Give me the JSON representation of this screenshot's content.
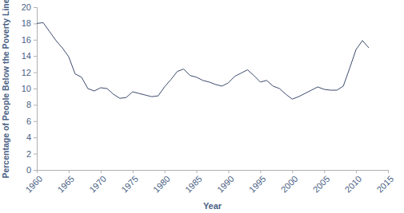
{
  "chart_data": {
    "type": "line",
    "x_label": "Year",
    "y_label": "Percentage of People Below the Poverty Line",
    "x": [
      1960,
      1961,
      1962,
      1963,
      1964,
      1965,
      1966,
      1967,
      1968,
      1969,
      1970,
      1971,
      1972,
      1973,
      1974,
      1975,
      1976,
      1977,
      1978,
      1979,
      1980,
      1981,
      1982,
      1983,
      1984,
      1985,
      1986,
      1987,
      1988,
      1989,
      1990,
      1991,
      1992,
      1993,
      1994,
      1995,
      1996,
      1997,
      1998,
      1999,
      2000,
      2001,
      2002,
      2003,
      2004,
      2005,
      2006,
      2007,
      2008,
      2009,
      2010,
      2011,
      2012
    ],
    "values": [
      18.0,
      18.1,
      17.0,
      15.9,
      15.0,
      13.9,
      11.8,
      11.4,
      10.0,
      9.7,
      10.1,
      10.0,
      9.3,
      8.8,
      8.9,
      9.6,
      9.4,
      9.2,
      9.0,
      9.1,
      10.2,
      11.1,
      12.1,
      12.4,
      11.6,
      11.4,
      11.0,
      10.8,
      10.5,
      10.3,
      10.7,
      11.5,
      11.9,
      12.3,
      11.6,
      10.8,
      11.0,
      10.3,
      10.0,
      9.3,
      8.7,
      9.0,
      9.4,
      9.8,
      10.2,
      9.9,
      9.8,
      9.8,
      10.3,
      12.5,
      14.8,
      15.9,
      15.0
    ],
    "color": "#3d4b6e",
    "xlim": [
      1960,
      2015
    ],
    "xticks": [
      1960,
      1965,
      1970,
      1975,
      1980,
      1985,
      1990,
      1995,
      2000,
      2005,
      2010,
      2015
    ],
    "ylim": [
      0,
      20
    ],
    "yticks": [
      0,
      2,
      4,
      6,
      8,
      10,
      12,
      14,
      16,
      18,
      20
    ],
    "grid": false
  }
}
